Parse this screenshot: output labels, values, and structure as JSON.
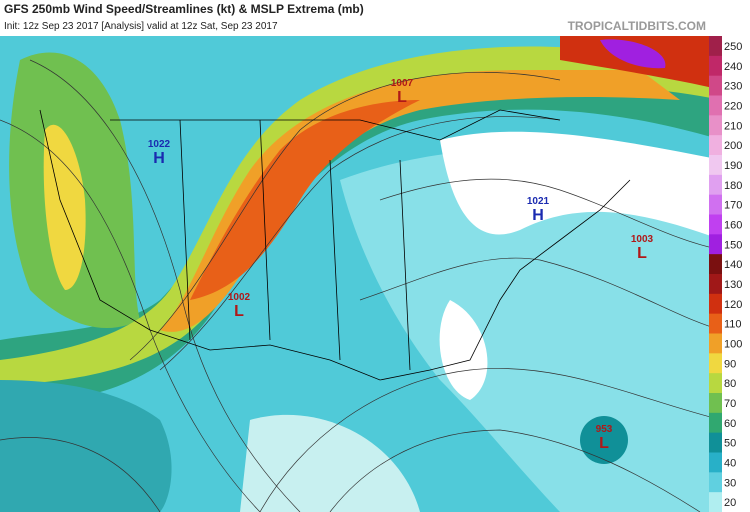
{
  "header": {
    "title": "GFS 250mb Wind Speed/Streamlines (kt) & MSLP Extrema (mb)",
    "subtitle": "Init: 12z Sep 23 2017   [Analysis]   valid at 12z Sat, Sep 23 2017",
    "site": "TROPICALTIDBITS.COM"
  },
  "colorbar": {
    "ticks": [
      250,
      240,
      230,
      220,
      210,
      200,
      190,
      180,
      170,
      160,
      150,
      140,
      130,
      120,
      110,
      100,
      90,
      80,
      70,
      60,
      50,
      40,
      30,
      20
    ],
    "colors": [
      "#a0204a",
      "#c02868",
      "#d04888",
      "#e070b0",
      "#e890c8",
      "#f0b0e0",
      "#f0c8f0",
      "#e0a0f0",
      "#d070f0",
      "#c040f0",
      "#a020e0",
      "#7a1010",
      "#a01818",
      "#d03010",
      "#e86018",
      "#f0a028",
      "#f0d840",
      "#b8d840",
      "#70c050",
      "#30a870",
      "#109098",
      "#28b0c8",
      "#60d0e0",
      "#b0eef0"
    ]
  },
  "systems": [
    {
      "pressure": "1007",
      "type": "L"
    },
    {
      "pressure": "1022",
      "type": "H"
    },
    {
      "pressure": "1021",
      "type": "H"
    },
    {
      "pressure": "1003",
      "type": "L"
    },
    {
      "pressure": "1002",
      "type": "L"
    },
    {
      "pressure": "953",
      "type": "L"
    }
  ]
}
